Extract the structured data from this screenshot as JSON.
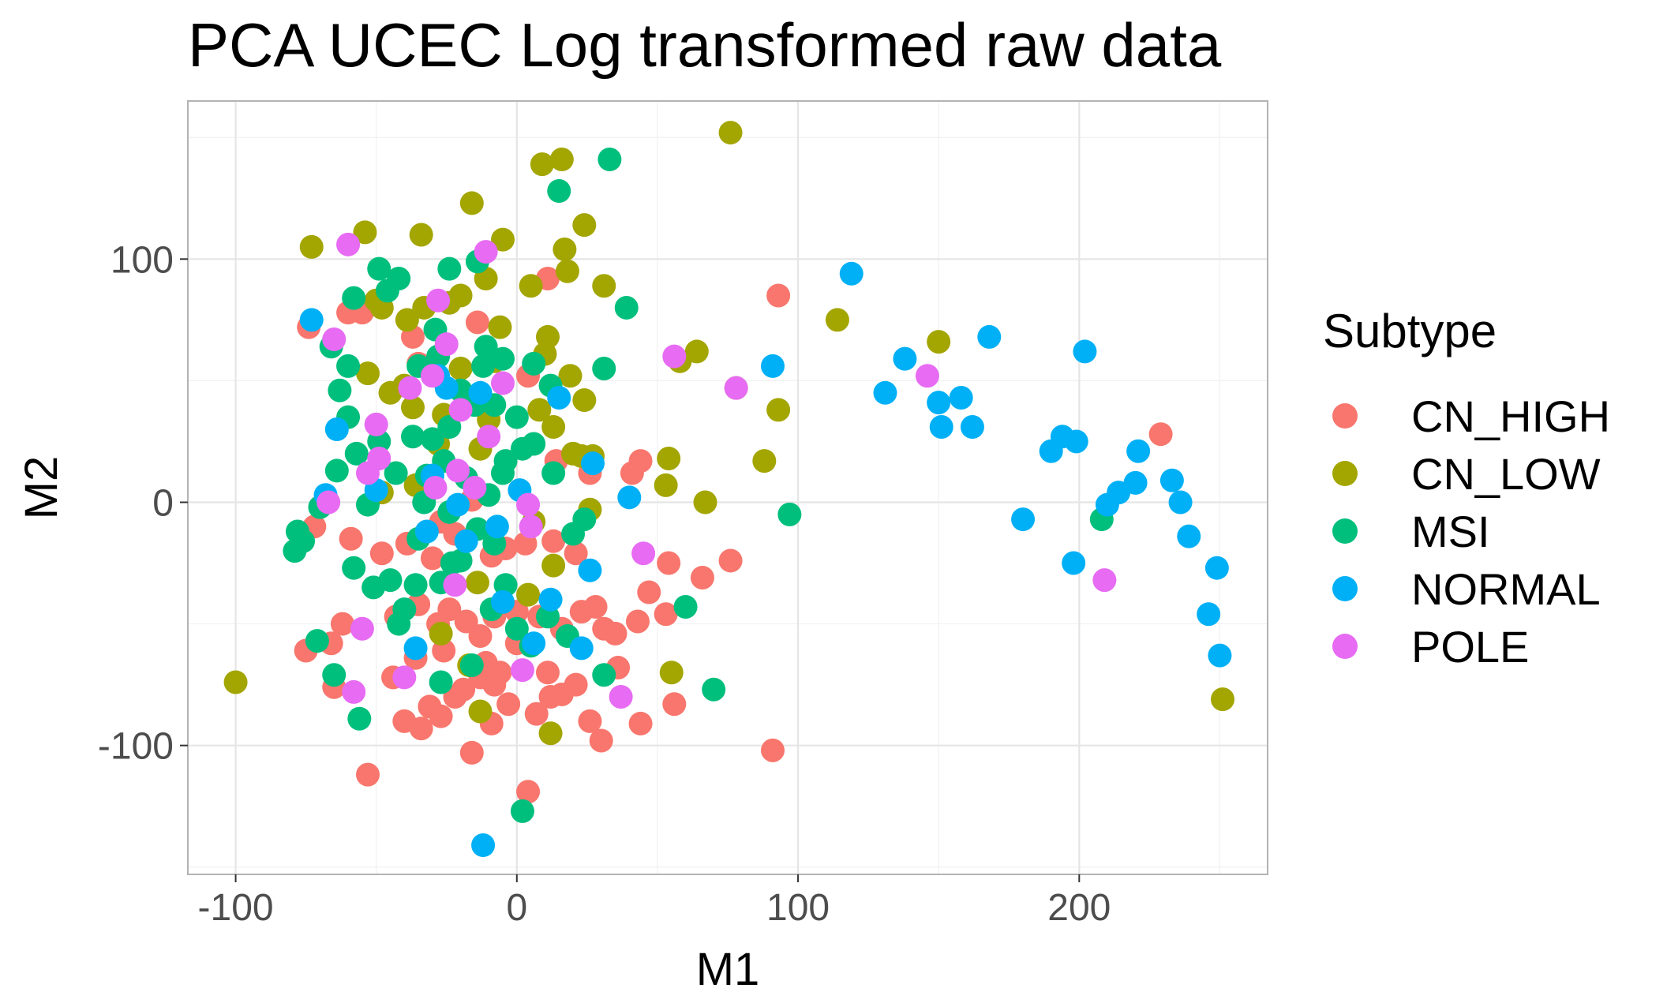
{
  "chart_data": {
    "type": "scatter",
    "title": "PCA UCEC Log transformed raw data",
    "xlabel": "M1",
    "ylabel": "M2",
    "xlim": [
      -117,
      267
    ],
    "ylim": [
      -153,
      165
    ],
    "x_ticks": [
      -100,
      0,
      100,
      200
    ],
    "y_ticks": [
      -100,
      0,
      100
    ],
    "grid": true,
    "legend": {
      "title": "Subtype",
      "position": "right"
    },
    "series": [
      {
        "name": "CN_HIGH",
        "color": "#F8766D",
        "points": [
          [
            -74,
            72
          ],
          [
            -60,
            78
          ],
          [
            -55,
            78
          ],
          [
            -37,
            68
          ],
          [
            -35,
            57
          ],
          [
            -14,
            74
          ],
          [
            4,
            52
          ],
          [
            11,
            92
          ],
          [
            93,
            85
          ],
          [
            229,
            28
          ],
          [
            41,
            12
          ],
          [
            44,
            17
          ],
          [
            26,
            12
          ],
          [
            14,
            17
          ],
          [
            -16,
            1
          ],
          [
            -72,
            -10
          ],
          [
            -59,
            -15
          ],
          [
            -48,
            -21
          ],
          [
            -39,
            -17
          ],
          [
            -30,
            -23
          ],
          [
            -27,
            -8
          ],
          [
            -22,
            -13
          ],
          [
            -9,
            -22
          ],
          [
            -4,
            -19
          ],
          [
            3,
            -17
          ],
          [
            13,
            -16
          ],
          [
            21,
            -21
          ],
          [
            -43,
            -47
          ],
          [
            -35,
            -42
          ],
          [
            -28,
            -50
          ],
          [
            -24,
            -44
          ],
          [
            -18,
            -49
          ],
          [
            -13,
            -55
          ],
          [
            -8,
            -47
          ],
          [
            0,
            -45
          ],
          [
            8,
            -47
          ],
          [
            16,
            -52
          ],
          [
            23,
            -45
          ],
          [
            28,
            -43
          ],
          [
            31,
            -52
          ],
          [
            35,
            -54
          ],
          [
            43,
            -49
          ],
          [
            47,
            -37
          ],
          [
            53,
            -46
          ],
          [
            54,
            -25
          ],
          [
            66,
            -31
          ],
          [
            76,
            -24
          ],
          [
            -62,
            -50
          ],
          [
            -66,
            -58
          ],
          [
            -75,
            -61
          ],
          [
            -65,
            -76
          ],
          [
            -44,
            -72
          ],
          [
            -40,
            -90
          ],
          [
            -34,
            -93
          ],
          [
            -31,
            -84
          ],
          [
            -27,
            -88
          ],
          [
            -22,
            -80
          ],
          [
            -19,
            -77
          ],
          [
            -13,
            -72
          ],
          [
            -8,
            -75
          ],
          [
            -3,
            -83
          ],
          [
            7,
            -87
          ],
          [
            11,
            -70
          ],
          [
            16,
            -79
          ],
          [
            21,
            -75
          ],
          [
            26,
            -90
          ],
          [
            30,
            -98
          ],
          [
            44,
            -91
          ],
          [
            56,
            -83
          ],
          [
            91,
            -102
          ],
          [
            -53,
            -112
          ],
          [
            -16,
            -103
          ],
          [
            4,
            -119
          ],
          [
            -36,
            -64
          ],
          [
            -26,
            -61
          ],
          [
            -11,
            -66
          ],
          [
            -6,
            -70
          ],
          [
            12,
            -80
          ],
          [
            -9,
            -91
          ],
          [
            0,
            -58
          ],
          [
            36,
            -68
          ]
        ]
      },
      {
        "name": "CN_LOW",
        "color": "#A3A500",
        "points": [
          [
            76,
            152
          ],
          [
            9,
            139
          ],
          [
            16,
            141
          ],
          [
            24,
            114
          ],
          [
            -54,
            111
          ],
          [
            -34,
            110
          ],
          [
            -16,
            123
          ],
          [
            -5,
            108
          ],
          [
            -73,
            105
          ],
          [
            17,
            104
          ],
          [
            18,
            95
          ],
          [
            -11,
            92
          ],
          [
            5,
            89
          ],
          [
            31,
            89
          ],
          [
            -20,
            85
          ],
          [
            -24,
            82
          ],
          [
            -33,
            80
          ],
          [
            -6,
            72
          ],
          [
            11,
            68
          ],
          [
            -39,
            75
          ],
          [
            -48,
            80
          ],
          [
            114,
            75
          ],
          [
            150,
            66
          ],
          [
            64,
            62
          ],
          [
            58,
            58
          ],
          [
            10,
            61
          ],
          [
            -50,
            83
          ],
          [
            -53,
            53
          ],
          [
            -40,
            48
          ],
          [
            19,
            52
          ],
          [
            24,
            42
          ],
          [
            -37,
            39
          ],
          [
            -26,
            36
          ],
          [
            -10,
            34
          ],
          [
            8,
            38
          ],
          [
            13,
            31
          ],
          [
            -28,
            24
          ],
          [
            -13,
            22
          ],
          [
            -8,
            58
          ],
          [
            -45,
            45
          ],
          [
            93,
            38
          ],
          [
            78,
            47
          ],
          [
            88,
            17
          ],
          [
            23,
            19
          ],
          [
            27,
            19
          ],
          [
            54,
            18
          ],
          [
            53,
            7
          ],
          [
            67,
            0
          ],
          [
            26,
            -3
          ],
          [
            -48,
            4
          ],
          [
            -36,
            7
          ],
          [
            6,
            -8
          ],
          [
            13,
            -26
          ],
          [
            4,
            -38
          ],
          [
            -14,
            -33
          ],
          [
            -27,
            -54
          ],
          [
            -17,
            -67
          ],
          [
            -13,
            -86
          ],
          [
            12,
            -95
          ],
          [
            55,
            -70
          ],
          [
            -100,
            -74
          ],
          [
            251,
            -81
          ],
          [
            20,
            20
          ],
          [
            -20,
            55
          ]
        ]
      },
      {
        "name": "MSI",
        "color": "#00BF7D",
        "points": [
          [
            33,
            141
          ],
          [
            15,
            128
          ],
          [
            -49,
            96
          ],
          [
            -42,
            92
          ],
          [
            -24,
            96
          ],
          [
            -14,
            99
          ],
          [
            -58,
            84
          ],
          [
            -46,
            87
          ],
          [
            -35,
            56
          ],
          [
            -28,
            60
          ],
          [
            -11,
            64
          ],
          [
            -5,
            59
          ],
          [
            6,
            57
          ],
          [
            12,
            48
          ],
          [
            31,
            55
          ],
          [
            -66,
            64
          ],
          [
            -60,
            56
          ],
          [
            -63,
            46
          ],
          [
            -29,
            71
          ],
          [
            -20,
            46
          ],
          [
            -15,
            40
          ],
          [
            -8,
            40
          ],
          [
            0,
            35
          ],
          [
            6,
            24
          ],
          [
            -57,
            20
          ],
          [
            -49,
            25
          ],
          [
            -43,
            12
          ],
          [
            -37,
            27
          ],
          [
            -30,
            26
          ],
          [
            -24,
            31
          ],
          [
            -18,
            10
          ],
          [
            -10,
            3
          ],
          [
            -4,
            17
          ],
          [
            2,
            22
          ],
          [
            13,
            12
          ],
          [
            -64,
            13
          ],
          [
            -70,
            -2
          ],
          [
            -78,
            -12
          ],
          [
            -79,
            -20
          ],
          [
            -76,
            -16
          ],
          [
            -58,
            -27
          ],
          [
            -51,
            -35
          ],
          [
            -45,
            -32
          ],
          [
            -40,
            -44
          ],
          [
            -36,
            -34
          ],
          [
            -27,
            -33
          ],
          [
            -24,
            -4
          ],
          [
            -20,
            -24
          ],
          [
            -14,
            -11
          ],
          [
            -8,
            -17
          ],
          [
            -4,
            -34
          ],
          [
            0,
            -52
          ],
          [
            5,
            -59
          ],
          [
            18,
            -55
          ],
          [
            24,
            -7
          ],
          [
            31,
            -71
          ],
          [
            60,
            -43
          ],
          [
            70,
            -77
          ],
          [
            97,
            -5
          ],
          [
            208,
            -7
          ],
          [
            -65,
            -71
          ],
          [
            -56,
            -89
          ],
          [
            -27,
            -74
          ],
          [
            -16,
            -67
          ],
          [
            2,
            -127
          ],
          [
            -23,
            -25
          ],
          [
            -53,
            -1
          ],
          [
            -32,
            11
          ],
          [
            -42,
            -50
          ],
          [
            -35,
            -15
          ],
          [
            -9,
            -44
          ],
          [
            11,
            -47
          ],
          [
            20,
            -13
          ],
          [
            -5,
            12
          ],
          [
            39,
            80
          ],
          [
            -60,
            35
          ],
          [
            -71,
            -57
          ],
          [
            -12,
            56
          ],
          [
            -33,
            0
          ],
          [
            -26,
            17
          ]
        ]
      },
      {
        "name": "NORMAL",
        "color": "#00B0F6",
        "points": [
          [
            119,
            94
          ],
          [
            -73,
            75
          ],
          [
            91,
            56
          ],
          [
            138,
            59
          ],
          [
            131,
            45
          ],
          [
            150,
            41
          ],
          [
            158,
            43
          ],
          [
            151,
            31
          ],
          [
            162,
            31
          ],
          [
            168,
            68
          ],
          [
            202,
            62
          ],
          [
            190,
            21
          ],
          [
            194,
            27
          ],
          [
            199,
            25
          ],
          [
            221,
            21
          ],
          [
            220,
            8
          ],
          [
            214,
            4
          ],
          [
            210,
            -1
          ],
          [
            233,
            9
          ],
          [
            236,
            0
          ],
          [
            239,
            -14
          ],
          [
            180,
            -7
          ],
          [
            198,
            -25
          ],
          [
            249,
            -27
          ],
          [
            246,
            -46
          ],
          [
            250,
            -63
          ],
          [
            15,
            43
          ],
          [
            27,
            16
          ],
          [
            40,
            2
          ],
          [
            1,
            5
          ],
          [
            -13,
            45
          ],
          [
            -25,
            47
          ],
          [
            -30,
            11
          ],
          [
            -64,
            30
          ],
          [
            -50,
            5
          ],
          [
            -68,
            3
          ],
          [
            -18,
            -16
          ],
          [
            -5,
            -41
          ],
          [
            6,
            -58
          ],
          [
            12,
            -40
          ],
          [
            26,
            -28
          ],
          [
            23,
            -60
          ],
          [
            -36,
            -60
          ],
          [
            -12,
            -141
          ],
          [
            -32,
            -12
          ],
          [
            -7,
            -10
          ],
          [
            -21,
            -1
          ],
          [
            -28,
            52
          ]
        ]
      },
      {
        "name": "POLE",
        "color": "#E76BF3",
        "points": [
          [
            -60,
            106
          ],
          [
            -11,
            103
          ],
          [
            -28,
            83
          ],
          [
            -65,
            67
          ],
          [
            -25,
            65
          ],
          [
            -30,
            52
          ],
          [
            -20,
            38
          ],
          [
            -5,
            49
          ],
          [
            56,
            60
          ],
          [
            78,
            47
          ],
          [
            146,
            52
          ],
          [
            -50,
            32
          ],
          [
            -53,
            12
          ],
          [
            -21,
            13
          ],
          [
            -38,
            47
          ],
          [
            -10,
            27
          ],
          [
            -15,
            6
          ],
          [
            -67,
            0
          ],
          [
            -29,
            6
          ],
          [
            4,
            -1
          ],
          [
            5,
            -10
          ],
          [
            45,
            -21
          ],
          [
            -22,
            -34
          ],
          [
            -55,
            -52
          ],
          [
            -58,
            -78
          ],
          [
            -40,
            -72
          ],
          [
            2,
            -69
          ],
          [
            37,
            -80
          ],
          [
            209,
            -32
          ],
          [
            -49,
            18
          ]
        ]
      }
    ]
  }
}
